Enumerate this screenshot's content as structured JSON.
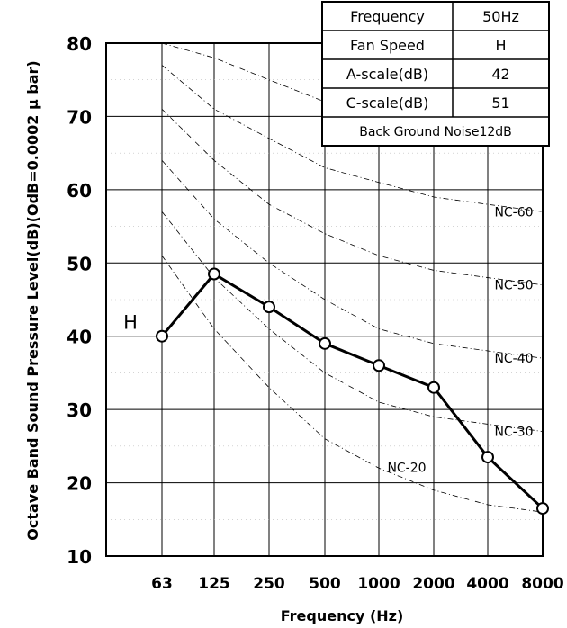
{
  "chart_data": {
    "type": "line",
    "xlabel": "Frequency (Hz)",
    "ylabel": "Octave Band Sound Pressure Level(dB)(OdB=0.0002 μ bar)",
    "categories": [
      "63",
      "125",
      "250",
      "500",
      "1000",
      "2000",
      "4000",
      "8000"
    ],
    "yticks": [
      "80",
      "70",
      "60",
      "50",
      "40",
      "30",
      "20",
      "10"
    ],
    "ylim": [
      10,
      80
    ],
    "grid": true,
    "series": [
      {
        "name": "H",
        "values": [
          40,
          48.5,
          44,
          39,
          36,
          33,
          23.5,
          16.5
        ]
      }
    ],
    "nc_curves": [
      {
        "label": "NC-20",
        "values": [
          51,
          41,
          33,
          26,
          22,
          19,
          17,
          16
        ]
      },
      {
        "label": "NC-30",
        "values": [
          57,
          48,
          41,
          35,
          31,
          29,
          28,
          27
        ]
      },
      {
        "label": "NC-40",
        "values": [
          64,
          56,
          50,
          45,
          41,
          39,
          38,
          37
        ]
      },
      {
        "label": "NC-50",
        "values": [
          71,
          64,
          58,
          54,
          51,
          49,
          48,
          47
        ]
      },
      {
        "label": "NC-60",
        "values": [
          77,
          71,
          67,
          63,
          61,
          59,
          58,
          57
        ]
      },
      {
        "label": "",
        "values": [
          80,
          78,
          75,
          72,
          71,
          70,
          69,
          68
        ]
      }
    ],
    "info_table": {
      "rows": [
        {
          "label": "Frequency",
          "value": "50Hz"
        },
        {
          "label": "Fan Speed",
          "value": "H"
        },
        {
          "label": "A-scale(dB)",
          "value": "42"
        },
        {
          "label": "C-scale(dB)",
          "value": "51"
        }
      ],
      "footer": "Back Ground Noise12dB"
    }
  }
}
